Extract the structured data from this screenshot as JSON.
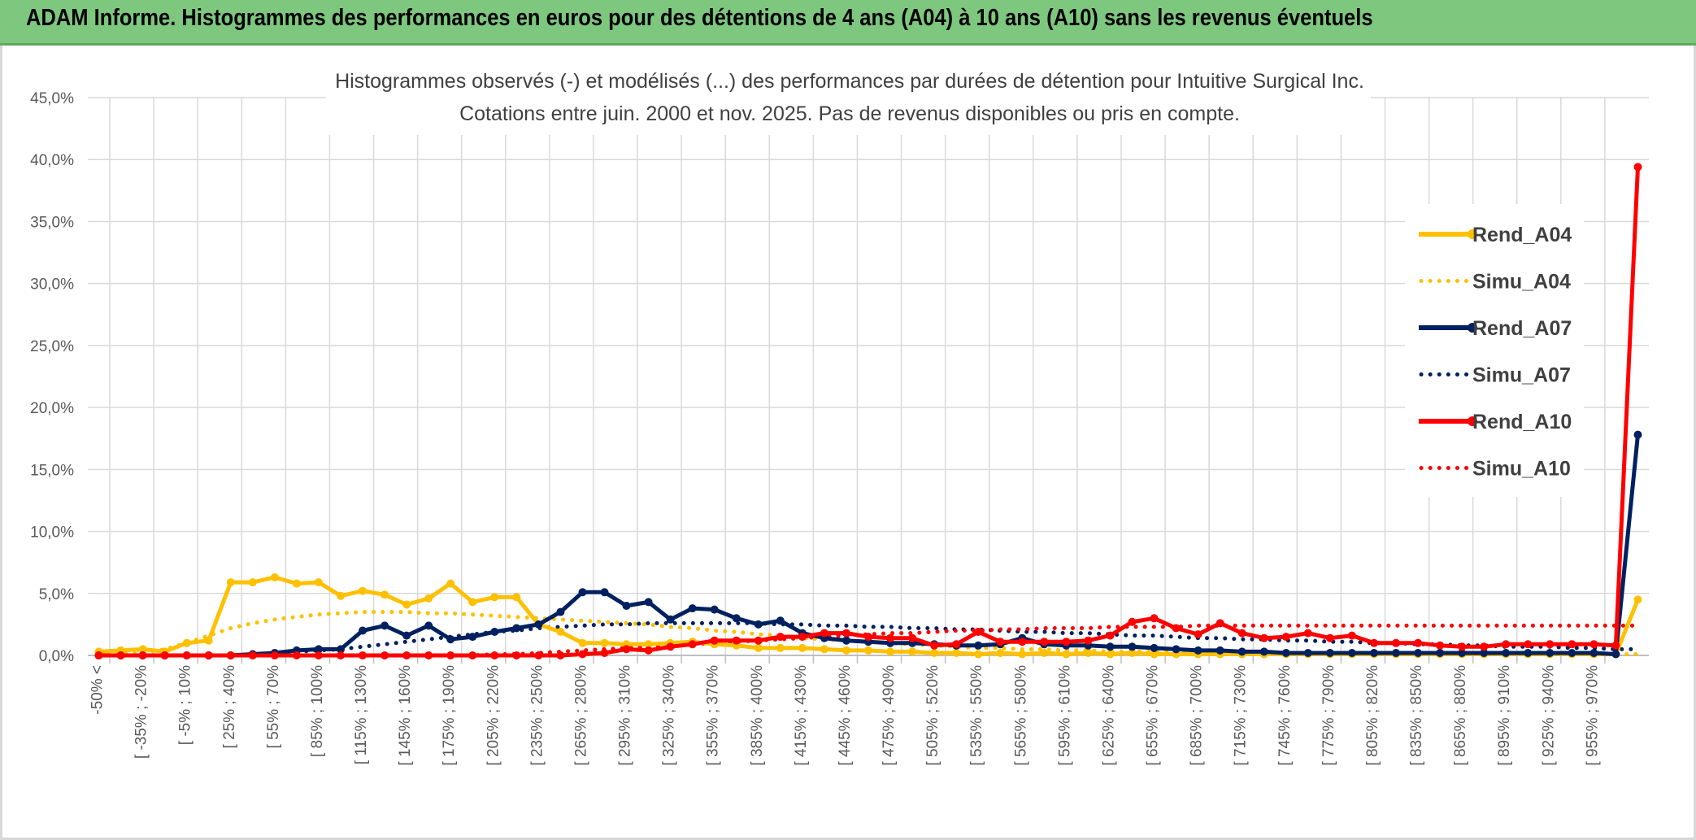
{
  "header": {
    "title": "ADAM Informe. Histogrammes des performances en euros pour des détentions de 4 ans (A04) à 10 ans (A10) sans les revenus éventuels"
  },
  "chart_data": {
    "type": "line",
    "title": "Histogrammes observés (-) et modélisés (...) des performances par durées de détention pour Intuitive Surgical Inc.",
    "subtitle": "Cotations entre juin. 2000 et nov. 2025. Pas de revenus disponibles ou pris en compte.",
    "xlabel": "",
    "ylabel": "",
    "ylim": [
      0,
      45
    ],
    "yticks": [
      "0,0%",
      "5,0%",
      "10,0%",
      "15,0%",
      "20,0%",
      "25,0%",
      "30,0%",
      "35,0%",
      "40,0%",
      "45,0%"
    ],
    "grid": true,
    "legend_position": "top-right",
    "x_tick_labels": [
      "-50% <",
      "[ -35% ; -20%",
      "[ -5% ; 10%",
      "[ 25% ; 40%",
      "[ 55% ; 70%",
      "[ 85% ; 100%",
      "[ 115% ; 130%",
      "[ 145% ; 160%",
      "[ 175% ; 190%",
      "[ 205% ; 220%",
      "[ 235% ; 250%",
      "[ 265% ; 280%",
      "[ 295% ; 310%",
      "[ 325% ; 340%",
      "[ 355% ; 370%",
      "[ 385% ; 400%",
      "[ 415% ; 430%",
      "[ 445% ; 460%",
      "[ 475% ; 490%",
      "[ 505% ; 520%",
      "[ 535% ; 550%",
      "[ 565% ; 580%",
      "[ 595% ; 610%",
      "[ 625% ; 640%",
      "[ 655% ; 670%",
      "[ 685% ; 700%",
      "[ 715% ; 730%",
      "[ 745% ; 760%",
      "[ 775% ; 790%",
      "[ 805% ; 820%",
      "[ 835% ; 850%",
      "[ 865% ; 880%",
      "[ 895% ; 910%",
      "[ 925% ; 940%",
      "[ 955% ; 970%"
    ],
    "n_points": 71,
    "series": [
      {
        "name": "Rend_A04",
        "style": "solid",
        "color": "#ffc000",
        "values": [
          0.3,
          0.4,
          0.5,
          0.3,
          1.0,
          1.2,
          5.9,
          5.9,
          6.3,
          5.8,
          5.9,
          4.8,
          5.2,
          4.9,
          4.1,
          4.6,
          5.8,
          4.3,
          4.7,
          4.7,
          2.5,
          1.9,
          1.0,
          1.0,
          0.9,
          0.9,
          1.0,
          1.1,
          0.9,
          0.8,
          0.6,
          0.6,
          0.6,
          0.5,
          0.4,
          0.4,
          0.3,
          0.3,
          0.2,
          0.2,
          0.1,
          0.2,
          0.1,
          0.2,
          0.1,
          0.2,
          0.1,
          0.2,
          0.1,
          0.1,
          0.1,
          0.1,
          0.1,
          0.1,
          0.1,
          0.1,
          0.1,
          0.1,
          0.1,
          0.1,
          0.1,
          0.1,
          0.1,
          0.1,
          0.1,
          0.1,
          0.1,
          0.1,
          0.1,
          0.1,
          4.5
        ]
      },
      {
        "name": "Simu_A04",
        "style": "dotted",
        "color": "#ffc000",
        "values": [
          0.1,
          0.1,
          0.2,
          0.5,
          1.0,
          1.6,
          2.2,
          2.6,
          2.9,
          3.1,
          3.3,
          3.4,
          3.5,
          3.5,
          3.5,
          3.4,
          3.4,
          3.3,
          3.2,
          3.1,
          3.0,
          2.9,
          2.8,
          2.7,
          2.6,
          2.5,
          2.3,
          2.2,
          2.0,
          1.9,
          1.7,
          1.6,
          1.4,
          1.3,
          1.2,
          1.1,
          1.0,
          0.9,
          0.8,
          0.7,
          0.6,
          0.6,
          0.5,
          0.5,
          0.4,
          0.4,
          0.3,
          0.3,
          0.3,
          0.3,
          0.2,
          0.2,
          0.2,
          0.2,
          0.2,
          0.2,
          0.1,
          0.1,
          0.1,
          0.1,
          0.1,
          0.1,
          0.1,
          0.1,
          0.1,
          0.1,
          0.1,
          0.1,
          0.1,
          0.1,
          0.1
        ]
      },
      {
        "name": "Rend_A07",
        "style": "solid",
        "color": "#002060",
        "values": [
          0.0,
          0.0,
          0.0,
          0.0,
          0.0,
          0.0,
          0.0,
          0.1,
          0.2,
          0.4,
          0.5,
          0.5,
          2.0,
          2.4,
          1.6,
          2.4,
          1.3,
          1.5,
          1.9,
          2.2,
          2.5,
          3.5,
          5.1,
          5.1,
          4.0,
          4.3,
          2.9,
          3.8,
          3.7,
          3.0,
          2.5,
          2.8,
          1.8,
          1.4,
          1.2,
          1.1,
          1.0,
          1.0,
          0.9,
          0.8,
          0.8,
          0.9,
          1.4,
          0.9,
          0.8,
          0.8,
          0.7,
          0.7,
          0.6,
          0.5,
          0.4,
          0.4,
          0.3,
          0.3,
          0.2,
          0.2,
          0.2,
          0.2,
          0.2,
          0.2,
          0.2,
          0.2,
          0.2,
          0.2,
          0.2,
          0.2,
          0.2,
          0.2,
          0.2,
          0.1,
          17.8
        ]
      },
      {
        "name": "Simu_A07",
        "style": "dotted",
        "color": "#002060",
        "values": [
          0.0,
          0.0,
          0.0,
          0.0,
          0.0,
          0.0,
          0.0,
          0.1,
          0.2,
          0.3,
          0.4,
          0.5,
          0.7,
          0.9,
          1.1,
          1.3,
          1.5,
          1.7,
          1.9,
          2.0,
          2.2,
          2.3,
          2.4,
          2.5,
          2.5,
          2.6,
          2.6,
          2.6,
          2.6,
          2.6,
          2.6,
          2.5,
          2.5,
          2.4,
          2.4,
          2.3,
          2.3,
          2.2,
          2.2,
          2.1,
          2.1,
          2.0,
          1.9,
          1.9,
          1.8,
          1.8,
          1.7,
          1.6,
          1.6,
          1.5,
          1.4,
          1.4,
          1.3,
          1.3,
          1.2,
          1.2,
          1.1,
          1.1,
          1.0,
          1.0,
          0.9,
          0.9,
          0.8,
          0.8,
          0.7,
          0.7,
          0.7,
          0.6,
          0.6,
          0.5,
          0.5
        ]
      },
      {
        "name": "Rend_A10",
        "style": "solid",
        "color": "#ff0000",
        "values": [
          0.0,
          0.0,
          0.0,
          0.0,
          0.0,
          0.0,
          0.0,
          0.0,
          0.0,
          0.0,
          0.0,
          0.0,
          0.0,
          0.0,
          0.0,
          0.0,
          0.0,
          0.0,
          0.0,
          0.0,
          0.0,
          0.0,
          0.1,
          0.2,
          0.5,
          0.4,
          0.7,
          0.9,
          1.2,
          1.2,
          1.2,
          1.5,
          1.5,
          1.8,
          1.8,
          1.5,
          1.4,
          1.4,
          0.8,
          0.9,
          1.9,
          1.1,
          1.1,
          1.1,
          1.1,
          1.2,
          1.6,
          2.7,
          3.0,
          2.2,
          1.7,
          2.6,
          1.8,
          1.4,
          1.5,
          1.8,
          1.4,
          1.6,
          1.0,
          1.0,
          1.0,
          0.8,
          0.7,
          0.7,
          0.9,
          0.9,
          0.9,
          0.9,
          0.9,
          0.8,
          39.4
        ]
      },
      {
        "name": "Simu_A10",
        "style": "dotted",
        "color": "#ff0000",
        "values": [
          0.0,
          0.0,
          0.0,
          0.0,
          0.0,
          0.0,
          0.0,
          0.0,
          0.0,
          0.0,
          0.0,
          0.0,
          0.0,
          0.0,
          0.0,
          0.0,
          0.0,
          0.0,
          0.1,
          0.1,
          0.2,
          0.3,
          0.4,
          0.5,
          0.6,
          0.7,
          0.8,
          0.9,
          1.0,
          1.1,
          1.2,
          1.3,
          1.4,
          1.5,
          1.6,
          1.7,
          1.8,
          1.8,
          1.9,
          2.0,
          2.0,
          2.1,
          2.1,
          2.2,
          2.2,
          2.2,
          2.3,
          2.3,
          2.3,
          2.3,
          2.4,
          2.4,
          2.4,
          2.4,
          2.4,
          2.4,
          2.4,
          2.4,
          2.4,
          2.4,
          2.4,
          2.4,
          2.4,
          2.4,
          2.4,
          2.4,
          2.4,
          2.4,
          2.4,
          2.4,
          2.4
        ]
      }
    ]
  }
}
